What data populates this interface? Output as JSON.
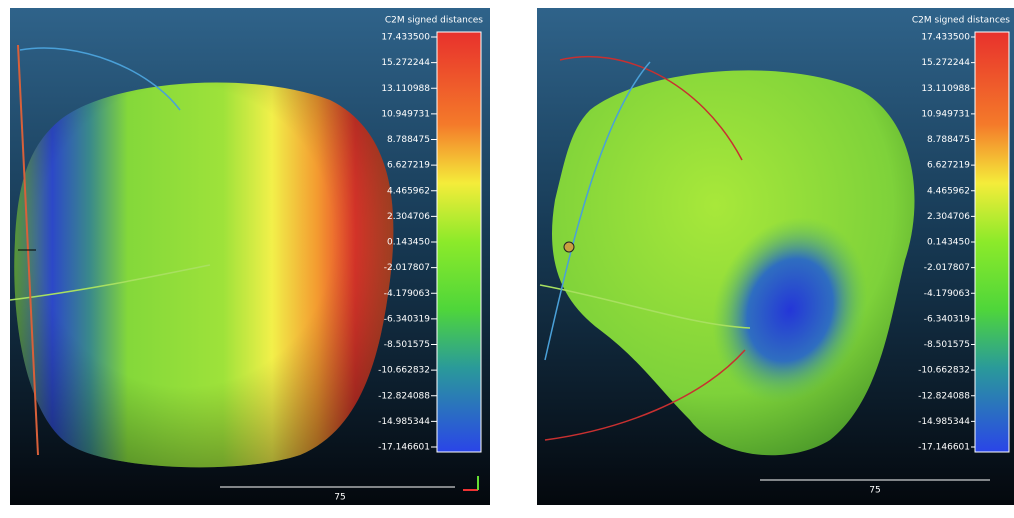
{
  "views": [
    {
      "scale": {
        "title": "C2M signed distances",
        "labels": [
          "17.433500",
          "15.272244",
          "13.110988",
          "10.949731",
          "8.788475",
          "6.627219",
          "4.465962",
          "2.304706",
          "0.143450",
          "-2.017807",
          "-4.179063",
          "-6.340319",
          "-8.501575",
          "-10.662832",
          "-12.824088",
          "-14.985344",
          "-17.146601"
        ]
      },
      "scale_bar": "75"
    },
    {
      "scale": {
        "title": "C2M signed distances",
        "labels": [
          "17.433500",
          "15.272244",
          "13.110988",
          "10.949731",
          "8.788475",
          "6.627219",
          "4.465962",
          "2.304706",
          "0.143450",
          "-2.017807",
          "-4.179063",
          "-6.340319",
          "-8.501575",
          "-10.662832",
          "-12.824088",
          "-14.985344",
          "-17.146601"
        ]
      },
      "scale_bar": "75"
    }
  ]
}
